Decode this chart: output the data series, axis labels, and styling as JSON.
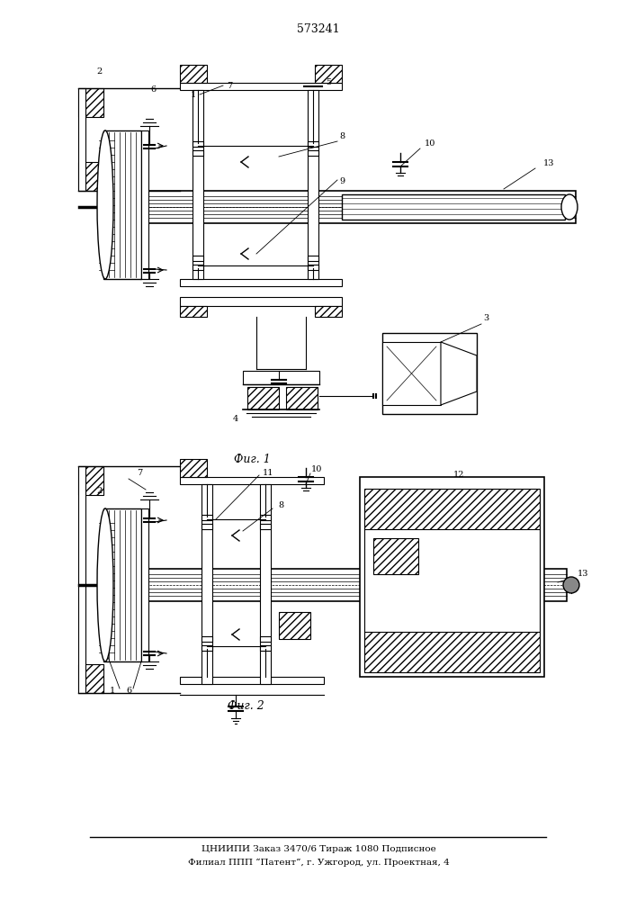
{
  "title": "573241",
  "fig_label1": "Фиг. 1",
  "fig_label2": "Фиг. 2",
  "footer_line1": "ЦНИИПИ Заказ 3470/6 Тираж 1080 Подписное",
  "footer_line2": "Филиал ППП “Патент”, г. Ужгород, ул. Проектная, 4",
  "bg_color": "#ffffff",
  "lc": "#000000"
}
